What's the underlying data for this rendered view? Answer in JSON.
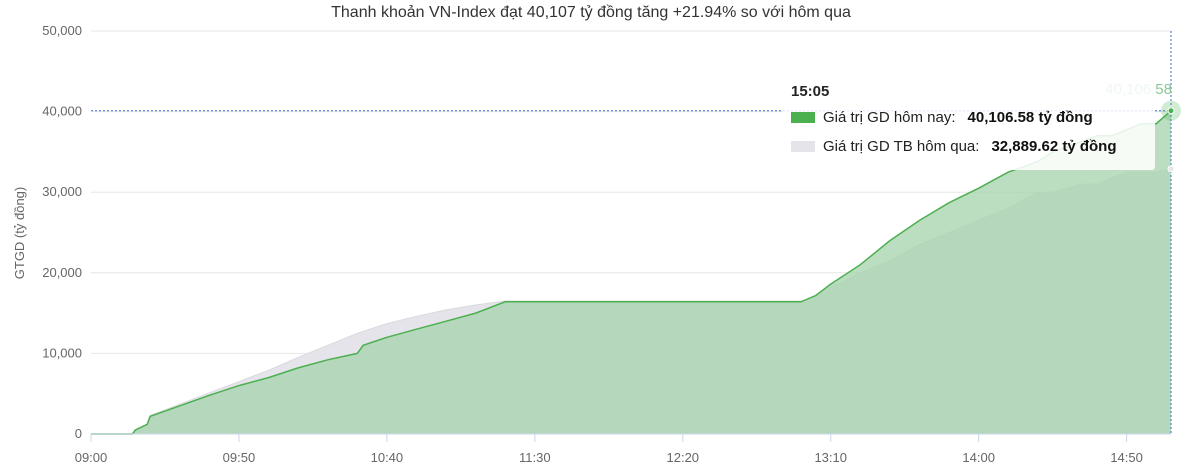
{
  "chart_data": {
    "type": "area",
    "title": "Thanh khoản VN-Index đạt 40,107 tỷ đồng tăng +21.94% so với hôm qua",
    "ylabel": "GTGD (tỷ đồng)",
    "xlabel": "",
    "x_tick_labels": [
      "09:00",
      "09:50",
      "10:40",
      "11:30",
      "12:20",
      "13:10",
      "14:00",
      "14:50"
    ],
    "y_tick_labels": [
      "0",
      "10,000",
      "20,000",
      "30,000",
      "40,000",
      "50,000"
    ],
    "ylim": [
      0,
      50000
    ],
    "xlim": [
      "09:00",
      "15:05"
    ],
    "grid": true,
    "series": [
      {
        "name": "Giá trị GD hôm nay",
        "color": "#4CAF50",
        "fill": "#a8d5ae",
        "x": [
          "09:00",
          "09:14",
          "09:15",
          "09:19",
          "09:20",
          "09:30",
          "09:40",
          "09:50",
          "10:00",
          "10:10",
          "10:20",
          "10:30",
          "10:32",
          "10:40",
          "10:50",
          "11:00",
          "11:10",
          "11:20",
          "11:30",
          "11:45",
          "12:00",
          "12:15",
          "12:30",
          "12:45",
          "13:00",
          "13:05",
          "13:10",
          "13:20",
          "13:30",
          "13:40",
          "13:50",
          "14:00",
          "14:10",
          "14:20",
          "14:25",
          "14:40",
          "14:45",
          "14:55",
          "15:00",
          "15:05"
        ],
        "values": [
          0,
          0,
          500,
          1200,
          2200,
          3500,
          4800,
          6000,
          7000,
          8200,
          9200,
          10000,
          11000,
          12000,
          13000,
          14000,
          15000,
          16400,
          16400,
          16400,
          16400,
          16400,
          16400,
          16400,
          16400,
          17200,
          18600,
          21000,
          24000,
          26500,
          28700,
          30500,
          32500,
          33800,
          35000,
          37000,
          37000,
          38500,
          38500,
          40106.58
        ]
      },
      {
        "name": "Giá trị GD TB hôm qua",
        "color": "#d9d9de",
        "fill": "#e4e4ea",
        "x": [
          "09:00",
          "09:14",
          "09:15",
          "09:19",
          "09:20",
          "09:30",
          "09:40",
          "09:50",
          "10:00",
          "10:10",
          "10:20",
          "10:30",
          "10:40",
          "10:50",
          "11:00",
          "11:10",
          "11:20",
          "11:30",
          "11:45",
          "12:00",
          "12:15",
          "12:30",
          "12:45",
          "13:00",
          "13:05",
          "13:10",
          "13:20",
          "13:30",
          "13:40",
          "13:50",
          "14:00",
          "14:10",
          "14:20",
          "14:25",
          "14:35",
          "14:40",
          "14:50",
          "14:55",
          "15:00",
          "15:05"
        ],
        "values": [
          0,
          0,
          400,
          1200,
          2300,
          3700,
          5100,
          6500,
          7900,
          9500,
          11000,
          12500,
          13700,
          14600,
          15400,
          16000,
          16500,
          16500,
          16500,
          16500,
          16500,
          16500,
          16500,
          16500,
          17000,
          18200,
          20000,
          21500,
          23500,
          25000,
          26500,
          28000,
          30000,
          30000,
          31000,
          31000,
          32500,
          32500,
          32500,
          32889.62
        ]
      }
    ],
    "annotations": {
      "last_value_label": "40,106.58"
    }
  },
  "tooltip": {
    "time": "15:05",
    "rows": [
      {
        "label": "Giá trị GD hôm nay:",
        "value": "40,106.58 tỷ đồng",
        "color": "#4CAF50"
      },
      {
        "label": "Giá trị GD TB hôm qua:",
        "value": "32,889.62 tỷ đồng",
        "color": "#e4e4ea"
      }
    ]
  }
}
